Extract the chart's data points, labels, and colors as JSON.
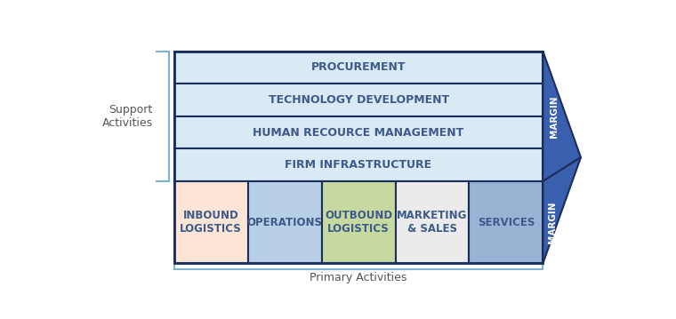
{
  "bg_color": "#ffffff",
  "support_rows": [
    {
      "label": "FIRM INFRASTRUCTURE",
      "color": "#daeaf5",
      "border": "#1a2e5a"
    },
    {
      "label": "HUMAN RECOURCE MANAGEMENT",
      "color": "#daeaf5",
      "border": "#1a2e5a"
    },
    {
      "label": "TECHNOLOGY DEVELOPMENT",
      "color": "#daeaf5",
      "border": "#1a2e5a"
    },
    {
      "label": "PROCUREMENT",
      "color": "#daeaf5",
      "border": "#1a2e5a"
    }
  ],
  "primary_cols": [
    {
      "label": "INBOUND\nLOGISTICS",
      "color": "#fce4d6",
      "text_color": "#3d5a8a"
    },
    {
      "label": "OPERATIONS",
      "color": "#b8cfe8",
      "text_color": "#3d5a8a"
    },
    {
      "label": "OUTBOUND\nLOGISTICS",
      "color": "#c6d9a0",
      "text_color": "#3d5a8a"
    },
    {
      "label": "MARKETING\n& SALES",
      "color": "#ebebeb",
      "text_color": "#3d5a8a"
    },
    {
      "label": "SERVICES",
      "color": "#9ab3d5",
      "text_color": "#3d5a8a"
    }
  ],
  "margin_color": "#3a5fae",
  "margin_border": "#1a2e5a",
  "margin_label": "MARGIN",
  "support_label": "Support\nActivities",
  "primary_label": "Primary Activities",
  "label_color": "#555555",
  "support_text_color": "#3d5a8a",
  "border_color": "#1a2e5a",
  "bracket_color": "#7fb3d3"
}
